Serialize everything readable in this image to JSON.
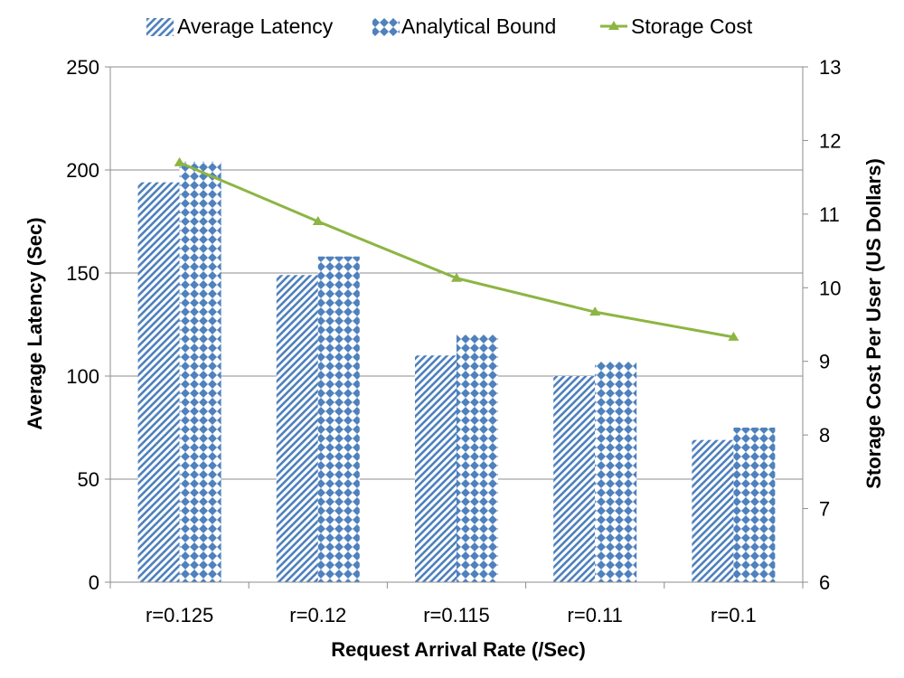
{
  "chart_data": {
    "type": "bar+line",
    "categories": [
      "r=0.125",
      "r=0.12",
      "r=0.115",
      "r=0.11",
      "r=0.1"
    ],
    "series": [
      {
        "name": "Average Latency",
        "type": "bar",
        "axis": "left",
        "values": [
          194,
          149,
          110,
          100,
          69
        ]
      },
      {
        "name": "Analytical Bound",
        "type": "bar",
        "axis": "left",
        "values": [
          204,
          158,
          120,
          107,
          75
        ]
      },
      {
        "name": "Storage Cost",
        "type": "line",
        "axis": "right",
        "values": [
          11.7,
          10.9,
          10.13,
          9.67,
          9.33
        ]
      }
    ],
    "xlabel": "Request Arrival Rate (/Sec)",
    "ylabel": "Average Latency (Sec)",
    "y2label": "Storage Cost Per User (US Dollars)",
    "ylim": [
      0,
      250
    ],
    "yticks": [
      "0",
      "50",
      "100",
      "150",
      "200",
      "250"
    ],
    "y2lim": [
      6,
      13
    ],
    "y2ticks": [
      "6",
      "7",
      "8",
      "9",
      "10",
      "11",
      "12",
      "13"
    ],
    "grid": true,
    "legend_position": "top",
    "colors": {
      "bar": "#4f81bd",
      "line": "#8db543",
      "grid": "#8c8c8c"
    }
  }
}
